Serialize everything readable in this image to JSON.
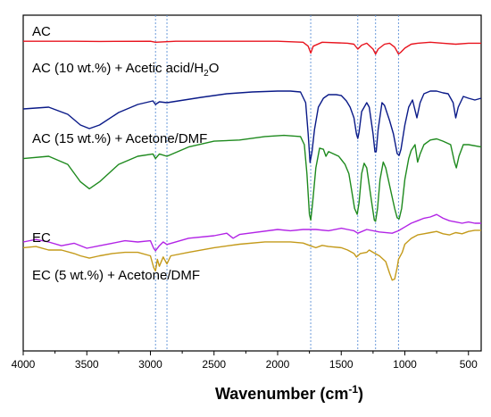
{
  "chart_data": {
    "type": "line",
    "title": "",
    "xlabel": "Wavenumber (cm",
    "xlabel_sup": "-1",
    "xlabel_close": ")",
    "ylabel": "",
    "xlim": [
      4000,
      400
    ],
    "x_reversed": true,
    "x_ticks": [
      4000,
      3500,
      3000,
      2500,
      2000,
      1500,
      1000,
      500
    ],
    "y_ticks_shown": false,
    "grid": false,
    "reference_lines": [
      2960,
      2870,
      1740,
      1370,
      1230,
      1050
    ],
    "reference_line_color": "#5b8fd6",
    "series": [
      {
        "label_parts": [
          "AC"
        ],
        "color": "#e8141e",
        "points": [
          [
            4000,
            0.02
          ],
          [
            3600,
            0.02
          ],
          [
            3400,
            0.022
          ],
          [
            3000,
            0.02
          ],
          [
            2960,
            0.03
          ],
          [
            2800,
            0.02
          ],
          [
            2000,
            0.02
          ],
          [
            1800,
            0.03
          ],
          [
            1760,
            0.07
          ],
          [
            1740,
            0.14
          ],
          [
            1720,
            0.07
          ],
          [
            1650,
            0.03
          ],
          [
            1450,
            0.04
          ],
          [
            1400,
            0.05
          ],
          [
            1370,
            0.1
          ],
          [
            1340,
            0.06
          ],
          [
            1300,
            0.04
          ],
          [
            1250,
            0.1
          ],
          [
            1230,
            0.15
          ],
          [
            1210,
            0.1
          ],
          [
            1160,
            0.05
          ],
          [
            1120,
            0.04
          ],
          [
            1080,
            0.08
          ],
          [
            1050,
            0.15
          ],
          [
            1030,
            0.13
          ],
          [
            1000,
            0.09
          ],
          [
            950,
            0.05
          ],
          [
            900,
            0.04
          ],
          [
            800,
            0.03
          ],
          [
            700,
            0.04
          ],
          [
            600,
            0.05
          ],
          [
            500,
            0.04
          ],
          [
            400,
            0.04
          ]
        ]
      },
      {
        "label_parts": [
          "AC (10 wt.%) + Acetic acid/H",
          "2",
          "O"
        ],
        "color": "#0a1a88",
        "points": [
          [
            4000,
            0.62
          ],
          [
            3800,
            0.6
          ],
          [
            3650,
            0.68
          ],
          [
            3550,
            0.8
          ],
          [
            3480,
            0.84
          ],
          [
            3400,
            0.8
          ],
          [
            3250,
            0.66
          ],
          [
            3100,
            0.57
          ],
          [
            2980,
            0.53
          ],
          [
            2960,
            0.57
          ],
          [
            2930,
            0.54
          ],
          [
            2870,
            0.55
          ],
          [
            2600,
            0.49
          ],
          [
            2400,
            0.45
          ],
          [
            2200,
            0.43
          ],
          [
            2000,
            0.42
          ],
          [
            1900,
            0.42
          ],
          [
            1820,
            0.43
          ],
          [
            1780,
            0.55
          ],
          [
            1760,
            0.9
          ],
          [
            1745,
            1.22
          ],
          [
            1730,
            1.1
          ],
          [
            1710,
            0.85
          ],
          [
            1680,
            0.6
          ],
          [
            1640,
            0.5
          ],
          [
            1600,
            0.46
          ],
          [
            1540,
            0.46
          ],
          [
            1500,
            0.47
          ],
          [
            1460,
            0.53
          ],
          [
            1430,
            0.6
          ],
          [
            1400,
            0.72
          ],
          [
            1380,
            0.9
          ],
          [
            1370,
            0.95
          ],
          [
            1360,
            0.88
          ],
          [
            1340,
            0.65
          ],
          [
            1300,
            0.55
          ],
          [
            1280,
            0.6
          ],
          [
            1250,
            0.9
          ],
          [
            1235,
            1.1
          ],
          [
            1225,
            1.1
          ],
          [
            1210,
            0.85
          ],
          [
            1180,
            0.55
          ],
          [
            1160,
            0.58
          ],
          [
            1120,
            0.75
          ],
          [
            1090,
            0.9
          ],
          [
            1060,
            1.12
          ],
          [
            1045,
            1.14
          ],
          [
            1030,
            1.07
          ],
          [
            1000,
            0.8
          ],
          [
            970,
            0.6
          ],
          [
            940,
            0.52
          ],
          [
            905,
            0.72
          ],
          [
            880,
            0.55
          ],
          [
            850,
            0.45
          ],
          [
            800,
            0.42
          ],
          [
            750,
            0.42
          ],
          [
            700,
            0.44
          ],
          [
            660,
            0.45
          ],
          [
            620,
            0.55
          ],
          [
            600,
            0.72
          ],
          [
            580,
            0.6
          ],
          [
            540,
            0.48
          ],
          [
            500,
            0.5
          ],
          [
            450,
            0.52
          ],
          [
            400,
            0.5
          ]
        ]
      },
      {
        "label_parts": [
          "AC (15 wt.%) + Acetone/DMF"
        ],
        "color": "#1e8a1e",
        "points": [
          [
            4000,
            0.92
          ],
          [
            3800,
            0.9
          ],
          [
            3650,
            0.97
          ],
          [
            3550,
            1.12
          ],
          [
            3480,
            1.18
          ],
          [
            3400,
            1.12
          ],
          [
            3250,
            0.97
          ],
          [
            3100,
            0.9
          ],
          [
            2980,
            0.88
          ],
          [
            2960,
            0.92
          ],
          [
            2930,
            0.88
          ],
          [
            2870,
            0.9
          ],
          [
            2700,
            0.82
          ],
          [
            2500,
            0.77
          ],
          [
            2300,
            0.76
          ],
          [
            2100,
            0.73
          ],
          [
            1950,
            0.72
          ],
          [
            1820,
            0.73
          ],
          [
            1790,
            0.8
          ],
          [
            1770,
            1.05
          ],
          [
            1750,
            1.4
          ],
          [
            1740,
            1.45
          ],
          [
            1725,
            1.3
          ],
          [
            1700,
            1.0
          ],
          [
            1670,
            0.83
          ],
          [
            1640,
            0.84
          ],
          [
            1620,
            0.9
          ],
          [
            1600,
            0.86
          ],
          [
            1560,
            0.88
          ],
          [
            1520,
            0.9
          ],
          [
            1470,
            0.97
          ],
          [
            1440,
            1.05
          ],
          [
            1420,
            1.18
          ],
          [
            1395,
            1.35
          ],
          [
            1375,
            1.4
          ],
          [
            1360,
            1.3
          ],
          [
            1340,
            1.05
          ],
          [
            1320,
            0.96
          ],
          [
            1300,
            1.0
          ],
          [
            1260,
            1.3
          ],
          [
            1240,
            1.45
          ],
          [
            1230,
            1.46
          ],
          [
            1215,
            1.35
          ],
          [
            1195,
            1.1
          ],
          [
            1170,
            0.95
          ],
          [
            1150,
            1.0
          ],
          [
            1110,
            1.2
          ],
          [
            1080,
            1.35
          ],
          [
            1060,
            1.43
          ],
          [
            1045,
            1.44
          ],
          [
            1025,
            1.35
          ],
          [
            1000,
            1.1
          ],
          [
            970,
            0.92
          ],
          [
            950,
            0.85
          ],
          [
            920,
            0.8
          ],
          [
            900,
            0.95
          ],
          [
            880,
            0.88
          ],
          [
            850,
            0.8
          ],
          [
            800,
            0.76
          ],
          [
            750,
            0.75
          ],
          [
            700,
            0.77
          ],
          [
            640,
            0.8
          ],
          [
            610,
            0.95
          ],
          [
            595,
            1.0
          ],
          [
            575,
            0.9
          ],
          [
            540,
            0.8
          ],
          [
            500,
            0.8
          ],
          [
            400,
            0.82
          ]
        ]
      },
      {
        "label_parts": [
          "EC"
        ],
        "color": "#b224e6",
        "points": [
          [
            4000,
            1.65
          ],
          [
            3900,
            1.63
          ],
          [
            3800,
            1.65
          ],
          [
            3700,
            1.68
          ],
          [
            3600,
            1.66
          ],
          [
            3500,
            1.7
          ],
          [
            3400,
            1.68
          ],
          [
            3300,
            1.66
          ],
          [
            3200,
            1.64
          ],
          [
            3100,
            1.65
          ],
          [
            3000,
            1.64
          ],
          [
            2975,
            1.7
          ],
          [
            2960,
            1.72
          ],
          [
            2930,
            1.68
          ],
          [
            2900,
            1.65
          ],
          [
            2870,
            1.67
          ],
          [
            2700,
            1.62
          ],
          [
            2500,
            1.6
          ],
          [
            2400,
            1.58
          ],
          [
            2350,
            1.62
          ],
          [
            2300,
            1.59
          ],
          [
            2000,
            1.55
          ],
          [
            1900,
            1.56
          ],
          [
            1800,
            1.55
          ],
          [
            1700,
            1.55
          ],
          [
            1600,
            1.56
          ],
          [
            1500,
            1.54
          ],
          [
            1450,
            1.55
          ],
          [
            1400,
            1.56
          ],
          [
            1370,
            1.58
          ],
          [
            1300,
            1.55
          ],
          [
            1200,
            1.57
          ],
          [
            1100,
            1.58
          ],
          [
            1050,
            1.56
          ],
          [
            1000,
            1.53
          ],
          [
            950,
            1.5
          ],
          [
            900,
            1.48
          ],
          [
            850,
            1.46
          ],
          [
            800,
            1.45
          ],
          [
            750,
            1.43
          ],
          [
            700,
            1.46
          ],
          [
            650,
            1.48
          ],
          [
            600,
            1.49
          ],
          [
            550,
            1.5
          ],
          [
            500,
            1.49
          ],
          [
            450,
            1.5
          ],
          [
            400,
            1.5
          ]
        ]
      },
      {
        "label_parts": [
          "EC (5 wt.%) + Acetone/DMF"
        ],
        "color": "#c49a1a",
        "points": [
          [
            4000,
            1.88
          ],
          [
            3900,
            1.87
          ],
          [
            3800,
            1.9
          ],
          [
            3700,
            1.9
          ],
          [
            3600,
            1.93
          ],
          [
            3550,
            1.95
          ],
          [
            3480,
            1.97
          ],
          [
            3400,
            1.95
          ],
          [
            3300,
            1.93
          ],
          [
            3200,
            1.92
          ],
          [
            3100,
            1.92
          ],
          [
            3000,
            1.95
          ],
          [
            2975,
            2.05
          ],
          [
            2960,
            2.08
          ],
          [
            2945,
            1.98
          ],
          [
            2930,
            2.04
          ],
          [
            2900,
            1.96
          ],
          [
            2870,
            2.02
          ],
          [
            2840,
            1.95
          ],
          [
            2700,
            1.92
          ],
          [
            2500,
            1.88
          ],
          [
            2300,
            1.85
          ],
          [
            2100,
            1.83
          ],
          [
            2000,
            1.83
          ],
          [
            1900,
            1.83
          ],
          [
            1800,
            1.84
          ],
          [
            1750,
            1.86
          ],
          [
            1700,
            1.88
          ],
          [
            1650,
            1.86
          ],
          [
            1600,
            1.87
          ],
          [
            1500,
            1.88
          ],
          [
            1450,
            1.9
          ],
          [
            1400,
            1.93
          ],
          [
            1380,
            1.96
          ],
          [
            1370,
            1.95
          ],
          [
            1350,
            1.93
          ],
          [
            1300,
            1.92
          ],
          [
            1280,
            1.9
          ],
          [
            1250,
            1.92
          ],
          [
            1200,
            1.95
          ],
          [
            1150,
            2.0
          ],
          [
            1120,
            2.1
          ],
          [
            1100,
            2.16
          ],
          [
            1080,
            2.15
          ],
          [
            1060,
            2.05
          ],
          [
            1050,
            1.98
          ],
          [
            1020,
            1.92
          ],
          [
            1000,
            1.85
          ],
          [
            950,
            1.8
          ],
          [
            900,
            1.77
          ],
          [
            850,
            1.76
          ],
          [
            800,
            1.75
          ],
          [
            750,
            1.74
          ],
          [
            700,
            1.76
          ],
          [
            650,
            1.77
          ],
          [
            600,
            1.75
          ],
          [
            550,
            1.76
          ],
          [
            500,
            1.74
          ],
          [
            450,
            1.73
          ],
          [
            400,
            1.73
          ]
        ]
      }
    ]
  }
}
